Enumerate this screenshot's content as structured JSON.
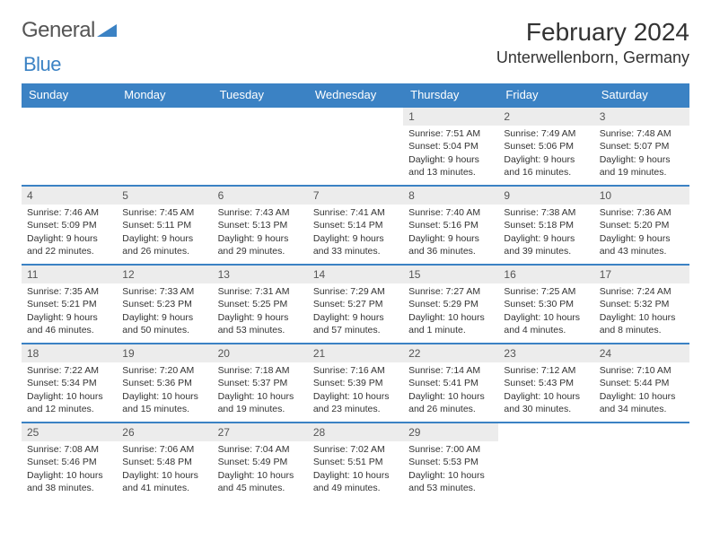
{
  "brand": {
    "word1": "General",
    "word2": "Blue",
    "color1": "#666666",
    "color2": "#3b82c4"
  },
  "title": "February 2024",
  "location": "Unterwellenborn, Germany",
  "colors": {
    "header_bg": "#3b82c4",
    "header_fg": "#ffffff",
    "daynum_bg": "#ececec",
    "row_border": "#3b82c4"
  },
  "day_headers": [
    "Sunday",
    "Monday",
    "Tuesday",
    "Wednesday",
    "Thursday",
    "Friday",
    "Saturday"
  ],
  "weeks": [
    [
      null,
      null,
      null,
      null,
      {
        "n": "1",
        "sr": "Sunrise: 7:51 AM",
        "ss": "Sunset: 5:04 PM",
        "dl": "Daylight: 9 hours and 13 minutes."
      },
      {
        "n": "2",
        "sr": "Sunrise: 7:49 AM",
        "ss": "Sunset: 5:06 PM",
        "dl": "Daylight: 9 hours and 16 minutes."
      },
      {
        "n": "3",
        "sr": "Sunrise: 7:48 AM",
        "ss": "Sunset: 5:07 PM",
        "dl": "Daylight: 9 hours and 19 minutes."
      }
    ],
    [
      {
        "n": "4",
        "sr": "Sunrise: 7:46 AM",
        "ss": "Sunset: 5:09 PM",
        "dl": "Daylight: 9 hours and 22 minutes."
      },
      {
        "n": "5",
        "sr": "Sunrise: 7:45 AM",
        "ss": "Sunset: 5:11 PM",
        "dl": "Daylight: 9 hours and 26 minutes."
      },
      {
        "n": "6",
        "sr": "Sunrise: 7:43 AM",
        "ss": "Sunset: 5:13 PM",
        "dl": "Daylight: 9 hours and 29 minutes."
      },
      {
        "n": "7",
        "sr": "Sunrise: 7:41 AM",
        "ss": "Sunset: 5:14 PM",
        "dl": "Daylight: 9 hours and 33 minutes."
      },
      {
        "n": "8",
        "sr": "Sunrise: 7:40 AM",
        "ss": "Sunset: 5:16 PM",
        "dl": "Daylight: 9 hours and 36 minutes."
      },
      {
        "n": "9",
        "sr": "Sunrise: 7:38 AM",
        "ss": "Sunset: 5:18 PM",
        "dl": "Daylight: 9 hours and 39 minutes."
      },
      {
        "n": "10",
        "sr": "Sunrise: 7:36 AM",
        "ss": "Sunset: 5:20 PM",
        "dl": "Daylight: 9 hours and 43 minutes."
      }
    ],
    [
      {
        "n": "11",
        "sr": "Sunrise: 7:35 AM",
        "ss": "Sunset: 5:21 PM",
        "dl": "Daylight: 9 hours and 46 minutes."
      },
      {
        "n": "12",
        "sr": "Sunrise: 7:33 AM",
        "ss": "Sunset: 5:23 PM",
        "dl": "Daylight: 9 hours and 50 minutes."
      },
      {
        "n": "13",
        "sr": "Sunrise: 7:31 AM",
        "ss": "Sunset: 5:25 PM",
        "dl": "Daylight: 9 hours and 53 minutes."
      },
      {
        "n": "14",
        "sr": "Sunrise: 7:29 AM",
        "ss": "Sunset: 5:27 PM",
        "dl": "Daylight: 9 hours and 57 minutes."
      },
      {
        "n": "15",
        "sr": "Sunrise: 7:27 AM",
        "ss": "Sunset: 5:29 PM",
        "dl": "Daylight: 10 hours and 1 minute."
      },
      {
        "n": "16",
        "sr": "Sunrise: 7:25 AM",
        "ss": "Sunset: 5:30 PM",
        "dl": "Daylight: 10 hours and 4 minutes."
      },
      {
        "n": "17",
        "sr": "Sunrise: 7:24 AM",
        "ss": "Sunset: 5:32 PM",
        "dl": "Daylight: 10 hours and 8 minutes."
      }
    ],
    [
      {
        "n": "18",
        "sr": "Sunrise: 7:22 AM",
        "ss": "Sunset: 5:34 PM",
        "dl": "Daylight: 10 hours and 12 minutes."
      },
      {
        "n": "19",
        "sr": "Sunrise: 7:20 AM",
        "ss": "Sunset: 5:36 PM",
        "dl": "Daylight: 10 hours and 15 minutes."
      },
      {
        "n": "20",
        "sr": "Sunrise: 7:18 AM",
        "ss": "Sunset: 5:37 PM",
        "dl": "Daylight: 10 hours and 19 minutes."
      },
      {
        "n": "21",
        "sr": "Sunrise: 7:16 AM",
        "ss": "Sunset: 5:39 PM",
        "dl": "Daylight: 10 hours and 23 minutes."
      },
      {
        "n": "22",
        "sr": "Sunrise: 7:14 AM",
        "ss": "Sunset: 5:41 PM",
        "dl": "Daylight: 10 hours and 26 minutes."
      },
      {
        "n": "23",
        "sr": "Sunrise: 7:12 AM",
        "ss": "Sunset: 5:43 PM",
        "dl": "Daylight: 10 hours and 30 minutes."
      },
      {
        "n": "24",
        "sr": "Sunrise: 7:10 AM",
        "ss": "Sunset: 5:44 PM",
        "dl": "Daylight: 10 hours and 34 minutes."
      }
    ],
    [
      {
        "n": "25",
        "sr": "Sunrise: 7:08 AM",
        "ss": "Sunset: 5:46 PM",
        "dl": "Daylight: 10 hours and 38 minutes."
      },
      {
        "n": "26",
        "sr": "Sunrise: 7:06 AM",
        "ss": "Sunset: 5:48 PM",
        "dl": "Daylight: 10 hours and 41 minutes."
      },
      {
        "n": "27",
        "sr": "Sunrise: 7:04 AM",
        "ss": "Sunset: 5:49 PM",
        "dl": "Daylight: 10 hours and 45 minutes."
      },
      {
        "n": "28",
        "sr": "Sunrise: 7:02 AM",
        "ss": "Sunset: 5:51 PM",
        "dl": "Daylight: 10 hours and 49 minutes."
      },
      {
        "n": "29",
        "sr": "Sunrise: 7:00 AM",
        "ss": "Sunset: 5:53 PM",
        "dl": "Daylight: 10 hours and 53 minutes."
      },
      null,
      null
    ]
  ]
}
